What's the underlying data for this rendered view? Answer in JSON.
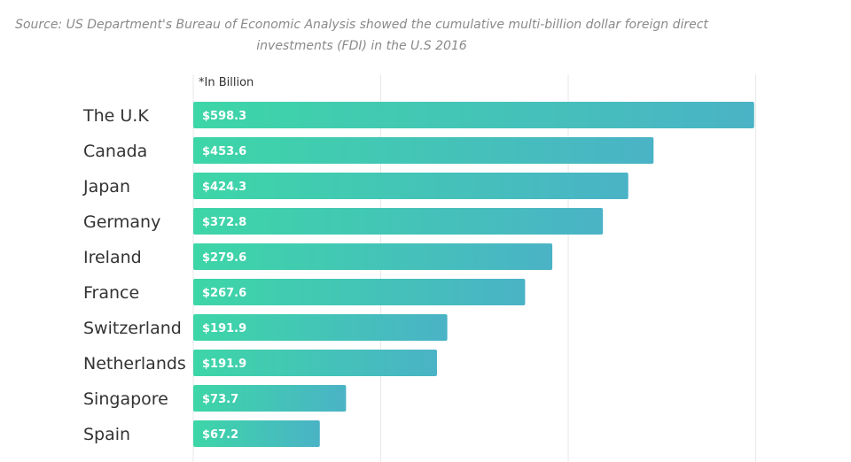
{
  "chart_data": {
    "type": "bar",
    "orientation": "horizontal",
    "title": "Source: US Department's Bureau of Economic Analysis showed the cumulative multi-billion dollar foreign direct investments (FDI) in the U.S 2016",
    "unit_note": "*In Billion",
    "categories": [
      "The U.K",
      "Canada",
      "Japan",
      "Germany",
      "Ireland",
      "France",
      "Switzerland",
      "Netherlands",
      "Singapore",
      "Spain"
    ],
    "values": [
      598.3,
      453.6,
      424.3,
      372.8,
      279.6,
      267.6,
      191.9,
      191.9,
      73.7,
      67.2
    ],
    "value_labels": [
      "$598.3",
      "$453.6",
      "$424.3",
      "$372.8",
      "$279.6",
      "$267.6",
      "$191.9",
      "$191.9",
      "$73.7",
      "$67.2"
    ],
    "bar_lengths_units": [
      598.3,
      491.0,
      464.0,
      437.0,
      383.0,
      354.0,
      271.0,
      260.0,
      163.0,
      135.0
    ],
    "xlim": [
      0,
      660
    ],
    "grid_ticks": [
      0,
      200,
      400,
      600
    ],
    "grid": true,
    "xlabel": "",
    "ylabel": "",
    "colors": {
      "bar_start": "#3dd6a7",
      "bar_end": "#4ab3c6",
      "grid": "#e8e8e8",
      "label": "#333333",
      "source": "#8a8a8a"
    }
  }
}
